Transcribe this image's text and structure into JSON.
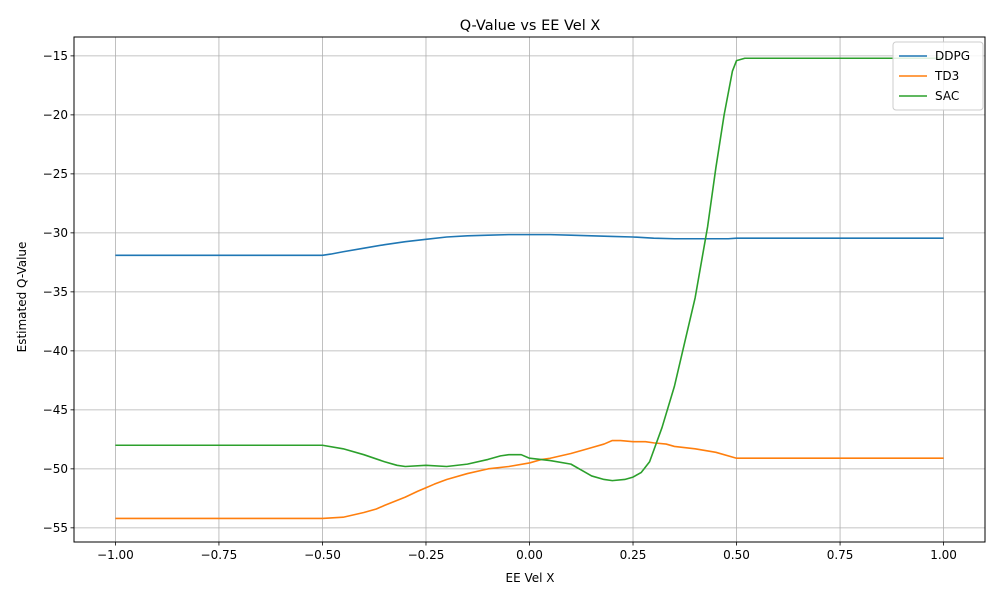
{
  "chart_data": {
    "type": "line",
    "title": "Q-Value vs EE Vel X",
    "xlabel": "EE Vel X",
    "ylabel": "Estimated Q-Value",
    "xlim": [
      -1.1,
      1.1
    ],
    "ylim": [
      -56.2,
      -13.4
    ],
    "xticks": [
      -1.0,
      -0.75,
      -0.5,
      -0.25,
      0.0,
      0.25,
      0.5,
      0.75,
      1.0
    ],
    "xtick_labels": [
      "−1.00",
      "−0.75",
      "−0.50",
      "−0.25",
      "0.00",
      "0.25",
      "0.50",
      "0.75",
      "1.00"
    ],
    "yticks": [
      -55,
      -50,
      -45,
      -40,
      -35,
      -30,
      -25,
      -20,
      -15
    ],
    "ytick_labels": [
      "−55",
      "−50",
      "−45",
      "−40",
      "−35",
      "−30",
      "−25",
      "−20",
      "−15"
    ],
    "grid": true,
    "legend": "top-right",
    "series": [
      {
        "name": "DDPG",
        "color": "#1f77b4",
        "points": [
          [
            -1.0,
            -31.9
          ],
          [
            -0.5,
            -31.9
          ],
          [
            -0.48,
            -31.8
          ],
          [
            -0.45,
            -31.6
          ],
          [
            -0.4,
            -31.3
          ],
          [
            -0.35,
            -31.0
          ],
          [
            -0.3,
            -30.75
          ],
          [
            -0.25,
            -30.55
          ],
          [
            -0.2,
            -30.35
          ],
          [
            -0.15,
            -30.25
          ],
          [
            -0.1,
            -30.2
          ],
          [
            -0.05,
            -30.15
          ],
          [
            0.0,
            -30.15
          ],
          [
            0.05,
            -30.15
          ],
          [
            0.1,
            -30.2
          ],
          [
            0.15,
            -30.25
          ],
          [
            0.2,
            -30.3
          ],
          [
            0.25,
            -30.35
          ],
          [
            0.3,
            -30.45
          ],
          [
            0.35,
            -30.5
          ],
          [
            0.4,
            -30.5
          ],
          [
            0.45,
            -30.5
          ],
          [
            0.48,
            -30.5
          ],
          [
            0.5,
            -30.45
          ],
          [
            0.55,
            -30.45
          ],
          [
            0.75,
            -30.45
          ],
          [
            1.0,
            -30.45
          ]
        ]
      },
      {
        "name": "TD3",
        "color": "#ff7f0e",
        "points": [
          [
            -1.0,
            -54.2
          ],
          [
            -0.5,
            -54.2
          ],
          [
            -0.45,
            -54.1
          ],
          [
            -0.4,
            -53.7
          ],
          [
            -0.37,
            -53.4
          ],
          [
            -0.35,
            -53.1
          ],
          [
            -0.3,
            -52.4
          ],
          [
            -0.27,
            -51.9
          ],
          [
            -0.25,
            -51.6
          ],
          [
            -0.23,
            -51.3
          ],
          [
            -0.2,
            -50.9
          ],
          [
            -0.15,
            -50.4
          ],
          [
            -0.1,
            -50.0
          ],
          [
            -0.05,
            -49.8
          ],
          [
            0.0,
            -49.5
          ],
          [
            0.03,
            -49.2
          ],
          [
            0.05,
            -49.1
          ],
          [
            0.1,
            -48.7
          ],
          [
            0.13,
            -48.4
          ],
          [
            0.15,
            -48.2
          ],
          [
            0.18,
            -47.9
          ],
          [
            0.2,
            -47.6
          ],
          [
            0.22,
            -47.6
          ],
          [
            0.25,
            -47.7
          ],
          [
            0.28,
            -47.7
          ],
          [
            0.3,
            -47.8
          ],
          [
            0.33,
            -47.9
          ],
          [
            0.35,
            -48.1
          ],
          [
            0.4,
            -48.3
          ],
          [
            0.45,
            -48.6
          ],
          [
            0.5,
            -49.1
          ],
          [
            0.55,
            -49.1
          ],
          [
            0.75,
            -49.1
          ],
          [
            1.0,
            -49.1
          ]
        ]
      },
      {
        "name": "SAC",
        "color": "#2ca02c",
        "points": [
          [
            -1.0,
            -48.0
          ],
          [
            -0.5,
            -48.0
          ],
          [
            -0.45,
            -48.3
          ],
          [
            -0.4,
            -48.8
          ],
          [
            -0.35,
            -49.4
          ],
          [
            -0.32,
            -49.7
          ],
          [
            -0.3,
            -49.8
          ],
          [
            -0.25,
            -49.7
          ],
          [
            -0.2,
            -49.8
          ],
          [
            -0.15,
            -49.6
          ],
          [
            -0.1,
            -49.2
          ],
          [
            -0.07,
            -48.9
          ],
          [
            -0.05,
            -48.8
          ],
          [
            -0.02,
            -48.8
          ],
          [
            0.0,
            -49.1
          ],
          [
            0.05,
            -49.3
          ],
          [
            0.1,
            -49.6
          ],
          [
            0.13,
            -50.2
          ],
          [
            0.15,
            -50.6
          ],
          [
            0.18,
            -50.9
          ],
          [
            0.2,
            -51.0
          ],
          [
            0.23,
            -50.9
          ],
          [
            0.25,
            -50.7
          ],
          [
            0.27,
            -50.3
          ],
          [
            0.29,
            -49.4
          ],
          [
            0.32,
            -46.5
          ],
          [
            0.35,
            -43.0
          ],
          [
            0.38,
            -38.5
          ],
          [
            0.4,
            -35.5
          ],
          [
            0.43,
            -29.5
          ],
          [
            0.45,
            -24.5
          ],
          [
            0.47,
            -20.0
          ],
          [
            0.49,
            -16.3
          ],
          [
            0.5,
            -15.4
          ],
          [
            0.52,
            -15.2
          ],
          [
            0.75,
            -15.2
          ],
          [
            1.0,
            -15.2
          ]
        ]
      }
    ]
  }
}
